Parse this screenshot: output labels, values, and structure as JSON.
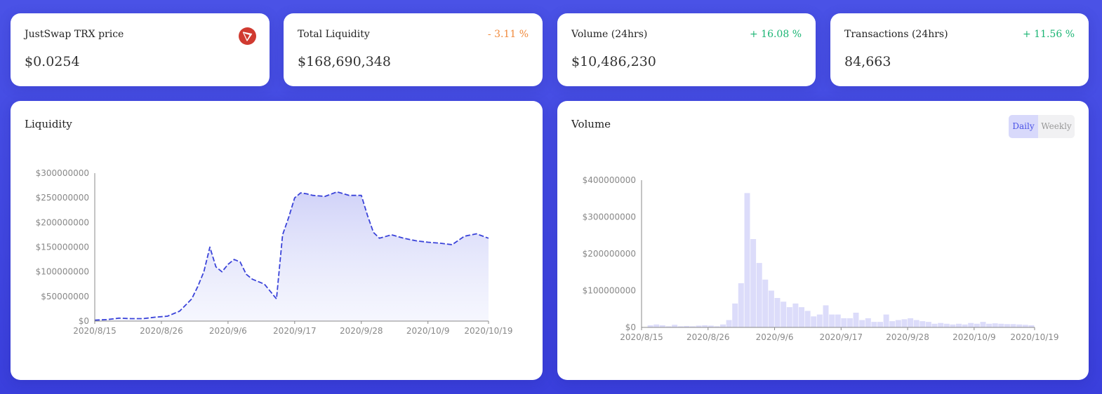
{
  "stats": [
    {
      "title": "JustSwap TRX price",
      "value": "$0.0254",
      "change": "",
      "icon": "tron-logo-icon"
    },
    {
      "title": "Total Liquidity",
      "value": "$168,690,348",
      "change": "- 3.11 %"
    },
    {
      "title": "Volume (24hrs)",
      "value": "$10,486,230",
      "change": "+ 16.08 %"
    },
    {
      "title": "Transactions (24hrs)",
      "value": "84,663",
      "change": "+ 11.56 %"
    }
  ],
  "colors": {
    "accent": "#4a52e6",
    "negative": "#f08a3c",
    "positive": "#1bb574",
    "bar": "#dcdcfa",
    "line": "#3a43d9"
  },
  "volume_toggle": {
    "daily": "Daily",
    "weekly": "Weekly",
    "selected": "Daily"
  },
  "chart_data": [
    {
      "type": "area",
      "title": "Liquidity",
      "x_start": "2020/8/15",
      "x_end": "2020/10/19",
      "x_ticks": [
        "2020/8/15",
        "2020/8/26",
        "2020/9/6",
        "2020/9/17",
        "2020/9/28",
        "2020/10/9",
        "2020/10/19"
      ],
      "y_ticks": [
        "$0",
        "$50000000",
        "$100000000",
        "$150000000",
        "$200000000",
        "$250000000",
        "$300000000"
      ],
      "ylim": [
        0,
        300000000
      ],
      "x": [
        "2020/8/15",
        "2020/8/17",
        "2020/8/19",
        "2020/8/21",
        "2020/8/23",
        "2020/8/25",
        "2020/8/27",
        "2020/8/29",
        "2020/8/31",
        "2020/9/1",
        "2020/9/2",
        "2020/9/3",
        "2020/9/4",
        "2020/9/5",
        "2020/9/6",
        "2020/9/7",
        "2020/9/8",
        "2020/9/9",
        "2020/9/10",
        "2020/9/11",
        "2020/9/12",
        "2020/9/13",
        "2020/9/14",
        "2020/9/15",
        "2020/9/16",
        "2020/9/17",
        "2020/9/18",
        "2020/9/19",
        "2020/9/20",
        "2020/9/22",
        "2020/9/24",
        "2020/9/26",
        "2020/9/28",
        "2020/9/29",
        "2020/9/30",
        "2020/10/1",
        "2020/10/3",
        "2020/10/5",
        "2020/10/7",
        "2020/10/9",
        "2020/10/11",
        "2020/10/13",
        "2020/10/15",
        "2020/10/17",
        "2020/10/19"
      ],
      "values": [
        2000000,
        3000000,
        6000000,
        5000000,
        5000000,
        8000000,
        10000000,
        20000000,
        45000000,
        70000000,
        100000000,
        150000000,
        110000000,
        100000000,
        115000000,
        125000000,
        120000000,
        95000000,
        85000000,
        80000000,
        75000000,
        60000000,
        45000000,
        175000000,
        210000000,
        250000000,
        260000000,
        258000000,
        255000000,
        253000000,
        262000000,
        255000000,
        255000000,
        215000000,
        180000000,
        168000000,
        175000000,
        168000000,
        163000000,
        160000000,
        158000000,
        155000000,
        172000000,
        177000000,
        168000000
      ]
    },
    {
      "type": "bar",
      "title": "Volume",
      "x_start": "2020/8/15",
      "x_end": "2020/10/19",
      "x_ticks": [
        "2020/8/15",
        "2020/8/26",
        "2020/9/6",
        "2020/9/17",
        "2020/9/28",
        "2020/10/9",
        "2020/10/19"
      ],
      "y_ticks": [
        "$0",
        "$100000000",
        "$200000000",
        "$300000000",
        "$400000000"
      ],
      "ylim": [
        0,
        400000000
      ],
      "start_date": "2020/8/15",
      "values": [
        1000000,
        6000000,
        8000000,
        6000000,
        3000000,
        7000000,
        3000000,
        4000000,
        3000000,
        5000000,
        6000000,
        5000000,
        3000000,
        8000000,
        20000000,
        65000000,
        120000000,
        365000000,
        240000000,
        175000000,
        130000000,
        100000000,
        80000000,
        70000000,
        55000000,
        65000000,
        55000000,
        45000000,
        30000000,
        35000000,
        60000000,
        35000000,
        35000000,
        25000000,
        25000000,
        40000000,
        20000000,
        25000000,
        15000000,
        15000000,
        35000000,
        17000000,
        20000000,
        22000000,
        25000000,
        20000000,
        17000000,
        15000000,
        10000000,
        12000000,
        10000000,
        8000000,
        10000000,
        8000000,
        12000000,
        10000000,
        15000000,
        10000000,
        11000000,
        10000000,
        9000000,
        9000000,
        8000000,
        7000000,
        6000000
      ]
    }
  ]
}
